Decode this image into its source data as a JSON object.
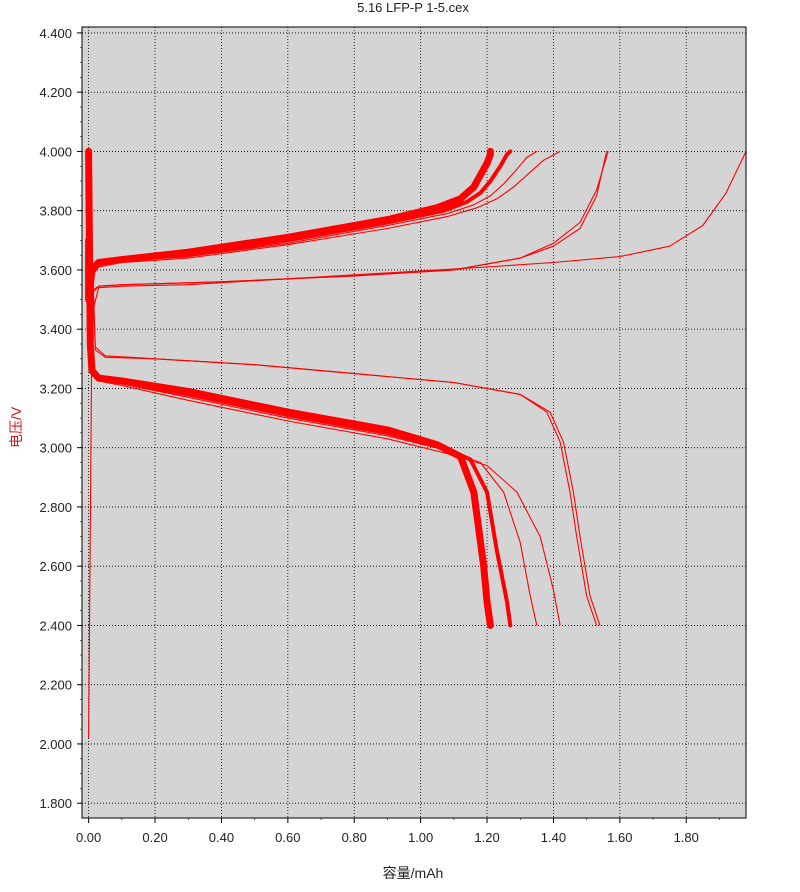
{
  "chart_data": {
    "type": "line",
    "title": "5.16 LFP-P 1-5.cex",
    "xlabel": "容量/mAh",
    "ylabel": "电压/V",
    "xlim": [
      -0.02,
      1.98
    ],
    "ylim": [
      1.75,
      4.42
    ],
    "x_ticks": [
      "0.00",
      "0.20",
      "0.40",
      "0.60",
      "0.80",
      "1.00",
      "1.20",
      "1.40",
      "1.60",
      "1.80"
    ],
    "y_ticks": [
      "1.800",
      "2.000",
      "2.200",
      "2.400",
      "2.600",
      "2.800",
      "3.000",
      "3.200",
      "3.400",
      "3.600",
      "3.800",
      "4.000",
      "4.200",
      "4.400"
    ],
    "grid": true,
    "series_color": "#ff0000",
    "background": "#d4d4d4",
    "series": [
      {
        "x": [
          0.0,
          0.01,
          0.03,
          0.1,
          0.3,
          0.6,
          0.9,
          1.2,
          1.4,
          1.6,
          1.75,
          1.85,
          1.92,
          1.98
        ],
        "y": [
          2.02,
          3.45,
          3.54,
          3.545,
          3.55,
          3.57,
          3.59,
          3.61,
          3.625,
          3.645,
          3.68,
          3.75,
          3.86,
          4.0
        ]
      },
      {
        "x": [
          0.0,
          0.01,
          0.03,
          0.1,
          0.4,
          0.8,
          1.1,
          1.3,
          1.4,
          1.48,
          1.53,
          1.56
        ],
        "y": [
          3.3,
          3.52,
          3.545,
          3.55,
          3.56,
          3.58,
          3.6,
          3.64,
          3.68,
          3.74,
          3.85,
          4.0
        ]
      },
      {
        "x": [
          0.0,
          0.01,
          0.03,
          0.1,
          0.4,
          0.8,
          1.1,
          1.3,
          1.4,
          1.48,
          1.53,
          1.565
        ],
        "y": [
          3.32,
          3.53,
          3.545,
          3.55,
          3.56,
          3.58,
          3.6,
          3.64,
          3.69,
          3.76,
          3.87,
          4.0
        ]
      },
      {
        "x": [
          0.0,
          0.02,
          0.05,
          0.2,
          0.5,
          0.8,
          1.1,
          1.3,
          1.38,
          1.42,
          1.45,
          1.47,
          1.5,
          1.53
        ],
        "y": [
          4.0,
          3.34,
          3.31,
          3.3,
          3.28,
          3.25,
          3.22,
          3.18,
          3.12,
          3.02,
          2.85,
          2.7,
          2.5,
          2.4
        ]
      },
      {
        "x": [
          0.0,
          0.02,
          0.05,
          0.2,
          0.5,
          0.8,
          1.1,
          1.3,
          1.39,
          1.43,
          1.46,
          1.48,
          1.51,
          1.54
        ],
        "y": [
          4.0,
          3.33,
          3.305,
          3.3,
          3.28,
          3.25,
          3.22,
          3.18,
          3.12,
          3.02,
          2.85,
          2.7,
          2.5,
          2.4
        ]
      },
      {
        "x": [
          0.0,
          0.0,
          0.01,
          0.03,
          0.1,
          0.3,
          0.6,
          0.9,
          1.05,
          1.12,
          1.16,
          1.18,
          1.2,
          1.21,
          1.21
        ],
        "y": [
          3.7,
          3.5,
          3.6,
          3.625,
          3.635,
          3.66,
          3.71,
          3.77,
          3.81,
          3.84,
          3.88,
          3.92,
          3.96,
          3.99,
          4.0
        ]
      },
      {
        "x": [
          0.0,
          0.0,
          0.01,
          0.03,
          0.1,
          0.3,
          0.6,
          0.9,
          1.07,
          1.14,
          1.18,
          1.21,
          1.24,
          1.26,
          1.27
        ],
        "y": [
          3.7,
          3.5,
          3.6,
          3.625,
          3.635,
          3.65,
          3.7,
          3.76,
          3.8,
          3.83,
          3.86,
          3.9,
          3.95,
          3.99,
          4.0
        ]
      },
      {
        "x": [
          0.0,
          0.0,
          0.01,
          0.03,
          0.1,
          0.3,
          0.6,
          0.9,
          1.08,
          1.16,
          1.21,
          1.25,
          1.29,
          1.32,
          1.35
        ],
        "y": [
          3.7,
          3.5,
          3.59,
          3.615,
          3.63,
          3.645,
          3.69,
          3.75,
          3.79,
          3.82,
          3.85,
          3.89,
          3.94,
          3.98,
          4.0
        ]
      },
      {
        "x": [
          0.0,
          0.0,
          0.01,
          0.03,
          0.1,
          0.3,
          0.6,
          0.9,
          1.08,
          1.17,
          1.23,
          1.28,
          1.33,
          1.37,
          1.42
        ],
        "y": [
          3.7,
          3.5,
          3.58,
          3.61,
          3.625,
          3.64,
          3.685,
          3.74,
          3.78,
          3.81,
          3.84,
          3.88,
          3.93,
          3.97,
          4.0
        ]
      },
      {
        "x": [
          0.0,
          0.005,
          0.01,
          0.03,
          0.1,
          0.3,
          0.6,
          0.9,
          1.05,
          1.12,
          1.16,
          1.19,
          1.2,
          1.21
        ],
        "y": [
          4.0,
          3.35,
          3.26,
          3.235,
          3.225,
          3.19,
          3.12,
          3.06,
          3.01,
          2.97,
          2.85,
          2.6,
          2.48,
          2.4
        ]
      },
      {
        "x": [
          0.0,
          0.005,
          0.01,
          0.03,
          0.1,
          0.3,
          0.6,
          0.9,
          1.07,
          1.15,
          1.2,
          1.23,
          1.26,
          1.27
        ],
        "y": [
          4.0,
          3.35,
          3.26,
          3.235,
          3.22,
          3.18,
          3.11,
          3.05,
          3.0,
          2.96,
          2.85,
          2.65,
          2.48,
          2.4
        ]
      },
      {
        "x": [
          0.0,
          0.005,
          0.01,
          0.03,
          0.1,
          0.3,
          0.6,
          0.9,
          1.08,
          1.18,
          1.25,
          1.3,
          1.33,
          1.35
        ],
        "y": [
          4.0,
          3.35,
          3.25,
          3.23,
          3.215,
          3.17,
          3.1,
          3.04,
          2.99,
          2.95,
          2.85,
          2.68,
          2.5,
          2.4
        ]
      },
      {
        "x": [
          0.0,
          0.005,
          0.01,
          0.03,
          0.1,
          0.3,
          0.6,
          0.9,
          1.08,
          1.2,
          1.29,
          1.36,
          1.4,
          1.42
        ],
        "y": [
          4.0,
          3.35,
          3.25,
          3.225,
          3.21,
          3.16,
          3.09,
          3.03,
          2.98,
          2.94,
          2.85,
          2.7,
          2.52,
          2.4
        ]
      }
    ]
  }
}
